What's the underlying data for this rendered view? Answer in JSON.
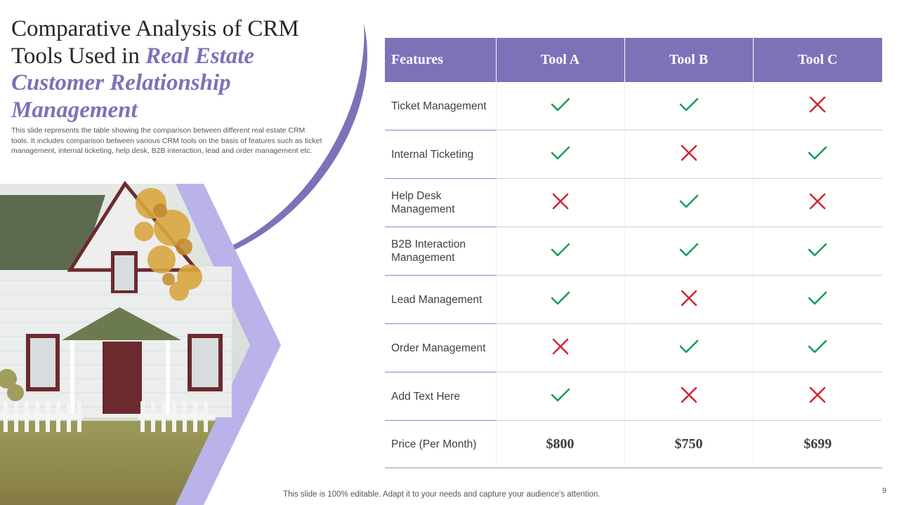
{
  "slide": {
    "title_prefix": "Comparative Analysis of CRM Tools Used in ",
    "title_accent": "Real Estate Customer Relationship Management",
    "description": "This slide represents the table showing the comparison between different real estate CRM tools. It includes comparison between various CRM tools on the basis of features such as ticket management, internal ticketing, help desk, B2B interaction, lead and order management etc.",
    "footer": "This slide is 100% editable. Adapt it to your needs and capture your audience's attention.",
    "page_number": "9"
  },
  "colors": {
    "accent": "#7b72b8",
    "accent_light": "#b9b3ea",
    "check": "#1a9c53",
    "cross": "#d4262c"
  },
  "table": {
    "headers": [
      "Features",
      "Tool A",
      "Tool B",
      "Tool C"
    ],
    "rows": [
      {
        "feature": "Ticket Management",
        "values": [
          "check-icon",
          "check-icon",
          "cross-icon"
        ]
      },
      {
        "feature": "Internal Ticketing",
        "values": [
          "check-icon",
          "cross-icon",
          "check-icon"
        ]
      },
      {
        "feature": "Help Desk Management",
        "values": [
          "cross-icon",
          "check-icon",
          "cross-icon"
        ]
      },
      {
        "feature": "B2B Interaction Management",
        "values": [
          "check-icon",
          "check-icon",
          "check-icon"
        ]
      },
      {
        "feature": "Lead Management",
        "values": [
          "check-icon",
          "cross-icon",
          "check-icon"
        ]
      },
      {
        "feature": "Order Management",
        "values": [
          "cross-icon",
          "check-icon",
          "check-icon"
        ]
      },
      {
        "feature": "Add Text Here",
        "values": [
          "check-icon",
          "cross-icon",
          "cross-icon"
        ]
      }
    ],
    "price_row": {
      "feature": "Price (Per Month)",
      "values": [
        "$800",
        "$750",
        "$699"
      ]
    }
  }
}
